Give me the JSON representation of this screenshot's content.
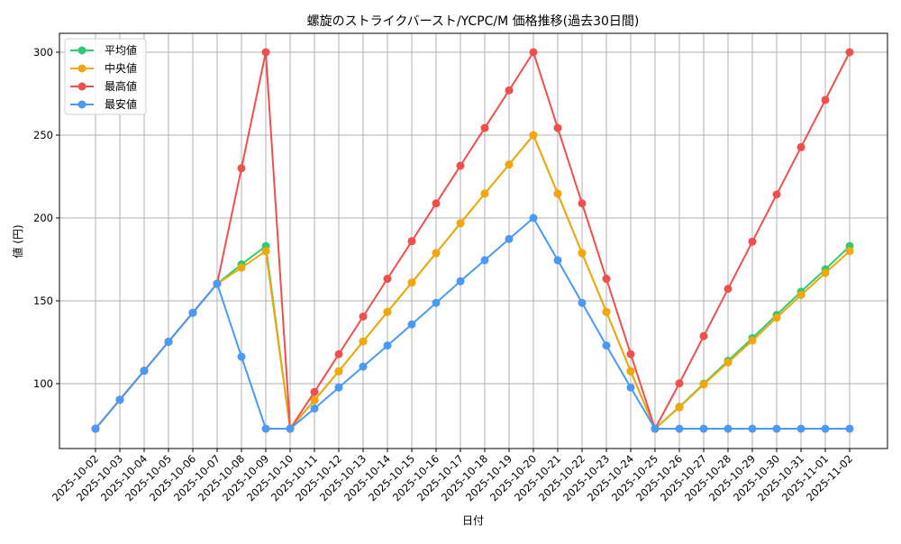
{
  "chart_data": {
    "type": "line",
    "title": "螺旋のストライクバースト/YCPC/M 価格推移(過去30日間)",
    "xlabel": "日付",
    "ylabel": "値 (円)",
    "ylim": [
      62,
      311
    ],
    "yticks": [
      100,
      150,
      200,
      250,
      300
    ],
    "grid": true,
    "legend_position": "upper left",
    "x": [
      "2025-10-02",
      "2025-10-03",
      "2025-10-04",
      "2025-10-05",
      "2025-10-06",
      "2025-10-07",
      "2025-10-08",
      "2025-10-09",
      "2025-10-10",
      "2025-10-11",
      "2025-10-12",
      "2025-10-13",
      "2025-10-14",
      "2025-10-15",
      "2025-10-16",
      "2025-10-17",
      "2025-10-18",
      "2025-10-19",
      "2025-10-20",
      "2025-10-21",
      "2025-10-22",
      "2025-10-23",
      "2025-10-24",
      "2025-10-25",
      "2025-10-26",
      "2025-10-27",
      "2025-10-28",
      "2025-10-29",
      "2025-10-30",
      "2025-10-31",
      "2025-11-01",
      "2025-11-02"
    ],
    "series": [
      {
        "name": "平均値",
        "color": "#2ecc71",
        "values": [
          72.8,
          90.3,
          107.8,
          125.3,
          142.8,
          160.3,
          172,
          183,
          72.8,
          90,
          107.5,
          125.5,
          143.3,
          161,
          178.8,
          196.8,
          214.7,
          232.3,
          250,
          214.7,
          178.8,
          143.3,
          107.5,
          72.8,
          86,
          100,
          113.8,
          127.5,
          141.5,
          155.5,
          169,
          183
        ]
      },
      {
        "name": "中央値",
        "color": "#f5a60a",
        "values": [
          72.8,
          90.3,
          107.8,
          125.3,
          142.8,
          160.3,
          170,
          180,
          72.8,
          90,
          107.5,
          125.5,
          143.3,
          161,
          178.8,
          196.8,
          214.7,
          232.3,
          250,
          214.7,
          178.8,
          143.3,
          107.5,
          72.8,
          85.7,
          99.5,
          112.8,
          126,
          139.8,
          153.5,
          166.8,
          180
        ]
      },
      {
        "name": "最高値",
        "color": "#f14e4e",
        "values": [
          72.8,
          90.3,
          107.8,
          125.3,
          142.8,
          160.3,
          230,
          300,
          72.8,
          95,
          117.8,
          140.5,
          163.3,
          186,
          208.8,
          231.5,
          254.3,
          277,
          300,
          254.3,
          208.8,
          163.3,
          117.8,
          72.8,
          100.2,
          128.7,
          157.2,
          185.7,
          214.2,
          242.7,
          271.2,
          300
        ]
      },
      {
        "name": "最安値",
        "color": "#4a9af5",
        "values": [
          72.8,
          90.3,
          107.8,
          125.3,
          142.8,
          160.3,
          116.3,
          72.8,
          72.8,
          85,
          97.7,
          110.3,
          123,
          135.8,
          148.8,
          161.8,
          174.5,
          187.3,
          200,
          174.5,
          148.8,
          123,
          97.7,
          72.8,
          72.8,
          72.8,
          72.8,
          72.8,
          72.8,
          72.8,
          72.8,
          72.8
        ]
      }
    ]
  },
  "legend": {
    "items": [
      {
        "label": "平均値",
        "color": "#2ecc71"
      },
      {
        "label": "中央値",
        "color": "#f5a60a"
      },
      {
        "label": "最高値",
        "color": "#f14e4e"
      },
      {
        "label": "最安値",
        "color": "#4a9af5"
      }
    ]
  }
}
